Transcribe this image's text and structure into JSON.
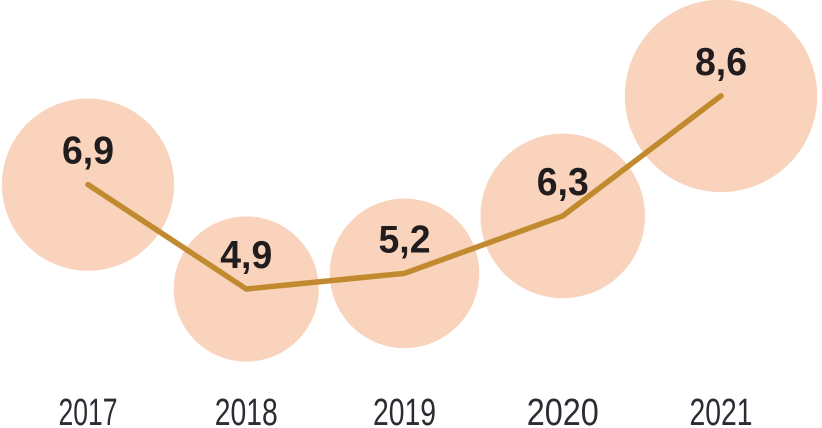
{
  "chart_data": {
    "type": "line",
    "variant": "bubble-line",
    "categories": [
      "2017",
      "2018",
      "2019",
      "2020",
      "2021"
    ],
    "values": [
      6.9,
      4.9,
      5.2,
      6.3,
      8.6
    ],
    "value_labels": [
      "6,9",
      "4,9",
      "5,2",
      "6,3",
      "8,6"
    ],
    "decimal_separator": ",",
    "legend": "none",
    "grid": false,
    "axes_visible": false,
    "bubble_area_proportional_to_value": true,
    "value_range_estimate": [
      4.9,
      8.6
    ],
    "colors": {
      "background": "#ffffff",
      "bubble_fill": "#f9d3bc",
      "line": "#c28a2f",
      "value_label_text": "#211d1e",
      "category_label_text": "#2b2b33"
    }
  }
}
